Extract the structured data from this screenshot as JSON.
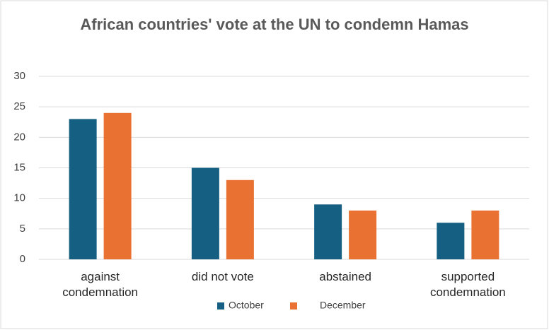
{
  "chart_data": {
    "type": "bar",
    "title": "African countries' vote at the UN to condemn Hamas",
    "categories": [
      "against condemnation",
      "did not vote",
      "abstained",
      "supported condemnation"
    ],
    "series": [
      {
        "name": "October",
        "color": "#156082",
        "values": [
          23,
          15,
          9,
          6
        ]
      },
      {
        "name": "December",
        "color": "#e97132",
        "values": [
          24,
          13,
          8,
          8
        ]
      }
    ],
    "ylim": [
      0,
      30
    ],
    "yticks": [
      0,
      5,
      10,
      15,
      20,
      25,
      30
    ],
    "grid": true,
    "legend": "bottom"
  }
}
